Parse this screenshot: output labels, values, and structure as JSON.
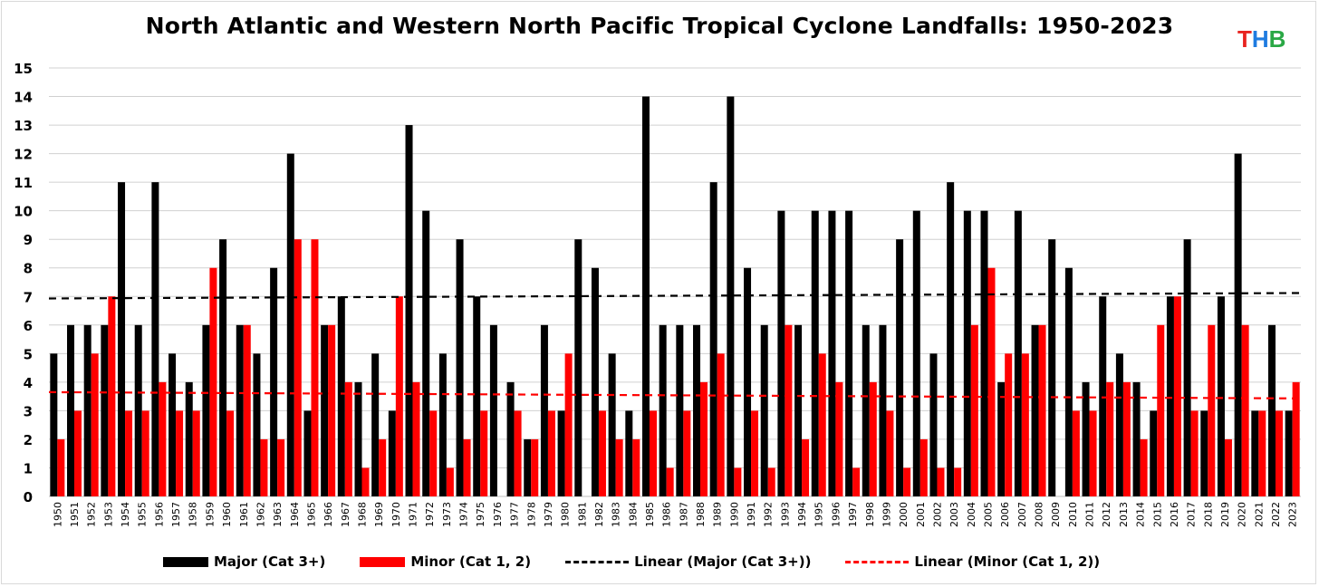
{
  "chart_data": {
    "type": "bar",
    "title": "North Atlantic and Western North Pacific Tropical Cyclone Landfalls: 1950-2023",
    "categories": [
      "1950",
      "1951",
      "1952",
      "1953",
      "1954",
      "1955",
      "1956",
      "1957",
      "1958",
      "1959",
      "1960",
      "1961",
      "1962",
      "1963",
      "1964",
      "1965",
      "1966",
      "1967",
      "1968",
      "1969",
      "1970",
      "1971",
      "1972",
      "1973",
      "1974",
      "1975",
      "1976",
      "1977",
      "1978",
      "1979",
      "1980",
      "1981",
      "1982",
      "1983",
      "1984",
      "1985",
      "1986",
      "1987",
      "1988",
      "1989",
      "1990",
      "1991",
      "1992",
      "1993",
      "1994",
      "1995",
      "1996",
      "1997",
      "1998",
      "1999",
      "2000",
      "2001",
      "2002",
      "2003",
      "2004",
      "2005",
      "2006",
      "2007",
      "2008",
      "2009",
      "2010",
      "2011",
      "2012",
      "2013",
      "2014",
      "2015",
      "2016",
      "2017",
      "2018",
      "2019",
      "2020",
      "2021",
      "2022",
      "2023"
    ],
    "series": [
      {
        "name": "Major (Cat 3+)",
        "color": "#000000",
        "values": [
          5,
          6,
          6,
          6,
          11,
          6,
          11,
          5,
          4,
          6,
          9,
          6,
          5,
          8,
          12,
          3,
          6,
          7,
          4,
          5,
          3,
          13,
          10,
          5,
          9,
          7,
          6,
          4,
          2,
          6,
          3,
          9,
          8,
          5,
          3,
          14,
          6,
          6,
          6,
          11,
          14,
          8,
          6,
          10,
          6,
          10,
          10,
          10,
          6,
          6,
          9,
          10,
          5,
          11,
          10,
          10,
          4,
          10,
          6,
          9,
          8,
          4,
          7,
          5,
          4,
          3,
          7,
          9,
          3,
          7,
          12,
          3,
          6,
          3
        ]
      },
      {
        "name": "Minor (Cat 1, 2)",
        "color": "#ff0000",
        "values": [
          2,
          3,
          5,
          7,
          3,
          3,
          4,
          3,
          3,
          8,
          3,
          6,
          2,
          2,
          9,
          9,
          6,
          4,
          1,
          2,
          7,
          4,
          3,
          1,
          2,
          3,
          0,
          3,
          2,
          3,
          5,
          0,
          3,
          2,
          2,
          3,
          1,
          3,
          4,
          5,
          1,
          3,
          1,
          6,
          2,
          5,
          4,
          1,
          4,
          3,
          1,
          2,
          1,
          1,
          6,
          8,
          5,
          5,
          6,
          0,
          3,
          3,
          4,
          4,
          2,
          6,
          7,
          3,
          6,
          2,
          6,
          3,
          3,
          4
        ]
      }
    ],
    "trendlines": [
      {
        "name": "Linear (Major (Cat 3+))",
        "color": "#000000",
        "start": 6.93,
        "end": 7.12
      },
      {
        "name": "Linear (Minor (Cat 1, 2))",
        "color": "#ff0000",
        "start": 3.65,
        "end": 3.43
      }
    ],
    "ylim": [
      0,
      15
    ],
    "yticks": [
      0,
      1,
      2,
      3,
      4,
      5,
      6,
      7,
      8,
      9,
      10,
      11,
      12,
      13,
      14,
      15
    ],
    "grid": true,
    "legend_position": "bottom"
  },
  "logo": {
    "t": "T",
    "h": "H",
    "b": "B"
  },
  "legend": {
    "major": "Major (Cat 3+)",
    "minor": "Minor (Cat 1, 2)",
    "lin_major": "Linear (Major (Cat 3+))",
    "lin_minor": "Linear (Minor (Cat 1, 2))"
  }
}
